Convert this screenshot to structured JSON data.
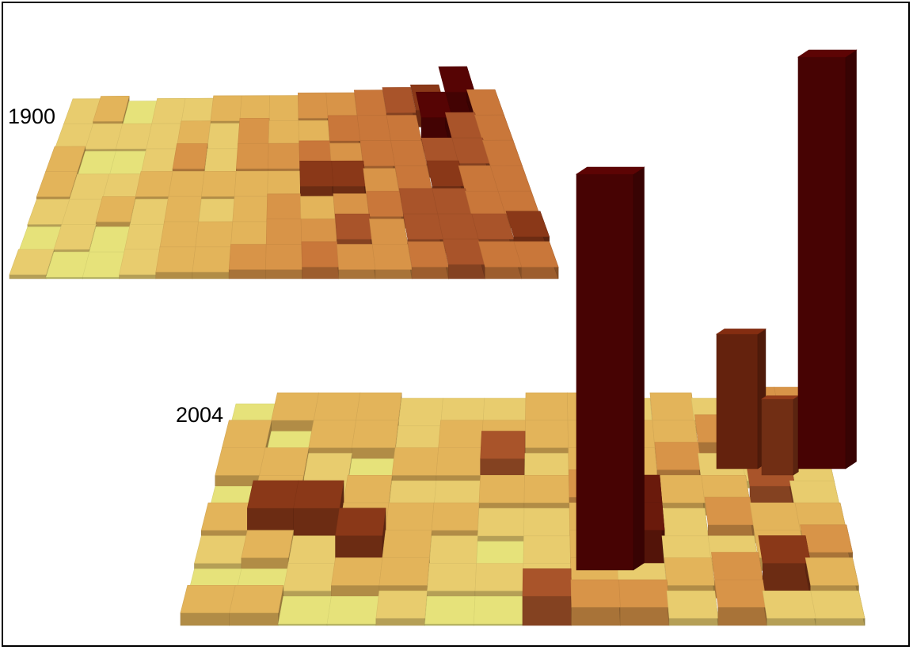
{
  "panels": [
    {
      "year_label": "1900"
    },
    {
      "year_label": "2004"
    }
  ],
  "colors": {
    "frame": "#000000",
    "background": "#ffffff",
    "ramp": [
      "#e6e27a",
      "#e8cc6e",
      "#e3b45a",
      "#d89448",
      "#c9773a",
      "#a9542a",
      "#8a3818",
      "#6a1a0c",
      "#560404"
    ]
  }
}
